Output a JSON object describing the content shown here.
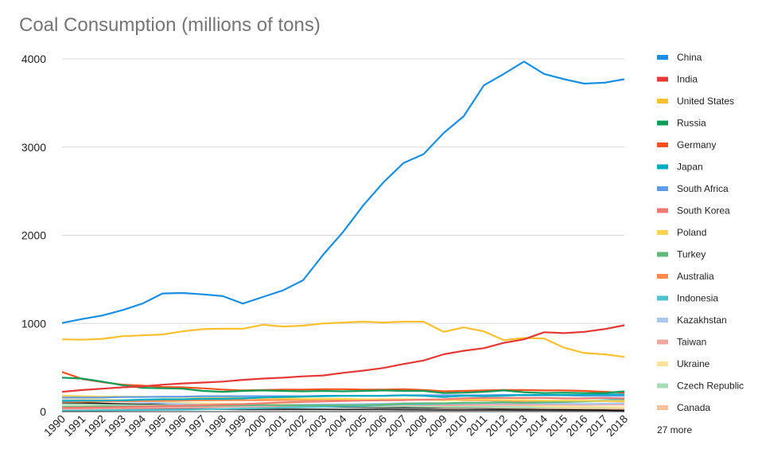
{
  "chart_data": {
    "type": "line",
    "title": "Coal Consumption (millions of tons)",
    "xlabel": "",
    "ylabel": "",
    "ylim": [
      0,
      4000
    ],
    "yticks": [
      "0",
      "1000",
      "2000",
      "3000",
      "4000"
    ],
    "grid": true,
    "legend_position": "right",
    "legend_more": "27 more",
    "x": [
      "1990",
      "1991",
      "1992",
      "1993",
      "1994",
      "1995",
      "1996",
      "1997",
      "1998",
      "1999",
      "2000",
      "2001",
      "2002",
      "2003",
      "2004",
      "2005",
      "2006",
      "2007",
      "2008",
      "2009",
      "2010",
      "2011",
      "2012",
      "2013",
      "2014",
      "2015",
      "2016",
      "2017",
      "2018"
    ],
    "series": [
      {
        "name": "China",
        "color": "#1a8fe3",
        "values": [
          1005,
          1050,
          1090,
          1150,
          1225,
          1340,
          1345,
          1330,
          1310,
          1225,
          1300,
          1375,
          1490,
          1780,
          2040,
          2340,
          2600,
          2820,
          2920,
          3160,
          3350,
          3700,
          3830,
          3970,
          3830,
          3770,
          3720,
          3730,
          3770
        ]
      },
      {
        "name": "India",
        "color": "#e53935",
        "values": [
          225,
          245,
          260,
          275,
          285,
          305,
          320,
          330,
          340,
          360,
          375,
          385,
          400,
          410,
          440,
          465,
          495,
          540,
          580,
          650,
          690,
          720,
          780,
          820,
          900,
          890,
          905,
          935,
          980
        ]
      },
      {
        "name": "United States",
        "color": "#fbc02d",
        "values": [
          820,
          815,
          825,
          855,
          865,
          875,
          910,
          935,
          940,
          940,
          985,
          965,
          975,
          1000,
          1010,
          1020,
          1010,
          1020,
          1020,
          905,
          955,
          910,
          810,
          835,
          830,
          725,
          665,
          650,
          620
        ]
      },
      {
        "name": "Russia",
        "color": "#0f9d58",
        "values": [
          385,
          375,
          340,
          300,
          270,
          265,
          260,
          235,
          225,
          235,
          240,
          235,
          230,
          235,
          230,
          235,
          240,
          235,
          235,
          210,
          215,
          225,
          240,
          220,
          210,
          215,
          210,
          210,
          230
        ]
      },
      {
        "name": "Germany",
        "color": "#f4511e",
        "values": [
          450,
          370,
          335,
          305,
          295,
          280,
          275,
          265,
          250,
          240,
          245,
          250,
          250,
          255,
          255,
          250,
          250,
          255,
          245,
          230,
          235,
          240,
          245,
          245,
          240,
          240,
          235,
          225,
          215
        ]
      },
      {
        "name": "Japan",
        "color": "#00acc1",
        "values": [
          120,
          125,
          125,
          128,
          135,
          140,
          140,
          145,
          145,
          150,
          160,
          165,
          170,
          175,
          180,
          180,
          180,
          185,
          180,
          165,
          180,
          175,
          180,
          190,
          190,
          190,
          190,
          195,
          195
        ]
      },
      {
        "name": "South Africa",
        "color": "#5e9cec",
        "values": [
          160,
          160,
          160,
          165,
          165,
          170,
          170,
          175,
          175,
          175,
          175,
          175,
          175,
          180,
          180,
          180,
          180,
          185,
          185,
          185,
          185,
          185,
          190,
          185,
          185,
          185,
          180,
          180,
          180
        ]
      },
      {
        "name": "South Korea",
        "color": "#ef7a6f",
        "values": [
          42,
          45,
          48,
          52,
          58,
          62,
          68,
          75,
          80,
          85,
          95,
          105,
          110,
          115,
          120,
          125,
          128,
          130,
          135,
          140,
          150,
          155,
          155,
          155,
          155,
          150,
          150,
          155,
          150
        ]
      },
      {
        "name": "Poland",
        "color": "#fdd451",
        "values": [
          180,
          175,
          170,
          170,
          170,
          165,
          165,
          165,
          160,
          155,
          150,
          150,
          145,
          145,
          145,
          140,
          140,
          140,
          135,
          130,
          135,
          135,
          130,
          130,
          125,
          125,
          125,
          120,
          120
        ]
      },
      {
        "name": "Turkey",
        "color": "#5fba7d",
        "values": [
          55,
          55,
          58,
          58,
          60,
          62,
          65,
          68,
          70,
          70,
          75,
          70,
          70,
          72,
          72,
          75,
          80,
          90,
          95,
          95,
          100,
          100,
          105,
          100,
          105,
          110,
          115,
          120,
          125
        ]
      },
      {
        "name": "Australia",
        "color": "#ff8a4c",
        "values": [
          110,
          112,
          115,
          118,
          120,
          122,
          125,
          128,
          130,
          130,
          130,
          132,
          132,
          135,
          135,
          135,
          135,
          135,
          135,
          135,
          130,
          128,
          125,
          122,
          120,
          118,
          118,
          118,
          115
        ]
      },
      {
        "name": "Indonesia",
        "color": "#4dc3cf",
        "values": [
          10,
          12,
          14,
          16,
          18,
          20,
          22,
          25,
          30,
          35,
          40,
          45,
          50,
          55,
          60,
          65,
          75,
          85,
          85,
          90,
          95,
          100,
          110,
          100,
          105,
          110,
          120,
          130,
          140
        ]
      },
      {
        "name": "Kazakhstan",
        "color": "#a8c8ee",
        "values": [
          130,
          128,
          125,
          115,
          105,
          95,
          85,
          75,
          72,
          68,
          72,
          75,
          80,
          82,
          85,
          88,
          90,
          95,
          95,
          90,
          92,
          95,
          95,
          95,
          90,
          90,
          88,
          90,
          92
        ]
      },
      {
        "name": "Taiwan",
        "color": "#f3a4a1",
        "values": [
          30,
          32,
          35,
          38,
          40,
          42,
          45,
          50,
          55,
          58,
          60,
          62,
          65,
          68,
          70,
          72,
          75,
          78,
          75,
          72,
          75,
          78,
          78,
          78,
          80,
          78,
          78,
          80,
          80
        ]
      },
      {
        "name": "Ukraine",
        "color": "#fde399",
        "values": [
          150,
          145,
          140,
          130,
          120,
          110,
          100,
          95,
          90,
          90,
          88,
          85,
          82,
          80,
          78,
          75,
          75,
          75,
          75,
          70,
          72,
          75,
          75,
          72,
          60,
          55,
          55,
          52,
          50
        ]
      },
      {
        "name": "Czech Republic",
        "color": "#a6dcb8",
        "values": [
          85,
          82,
          78,
          75,
          72,
          70,
          70,
          68,
          65,
          62,
          65,
          65,
          62,
          62,
          60,
          60,
          60,
          60,
          58,
          55,
          55,
          55,
          52,
          50,
          48,
          48,
          48,
          46,
          45
        ]
      },
      {
        "name": "Canada",
        "color": "#f9bf9a",
        "values": [
          55,
          58,
          58,
          56,
          55,
          55,
          58,
          60,
          62,
          62,
          64,
          65,
          62,
          60,
          60,
          60,
          58,
          60,
          58,
          50,
          50,
          48,
          45,
          42,
          40,
          38,
          36,
          34,
          32
        ]
      },
      {
        "name": "",
        "color": "#000000",
        "values": [
          100,
          95,
          90,
          85,
          80,
          78,
          75,
          72,
          70,
          68,
          65,
          62,
          60,
          58,
          55,
          52,
          50,
          50,
          48,
          45,
          45,
          42,
          40,
          38,
          35,
          30,
          25,
          20,
          15
        ]
      },
      {
        "name": "",
        "color": "#333333",
        "values": [
          40,
          38,
          36,
          35,
          32,
          30,
          30,
          28,
          28,
          26,
          26,
          25,
          25,
          25,
          24,
          24,
          24,
          23,
          22,
          20,
          20,
          20,
          19,
          18,
          18,
          17,
          17,
          16,
          16
        ]
      }
    ]
  }
}
